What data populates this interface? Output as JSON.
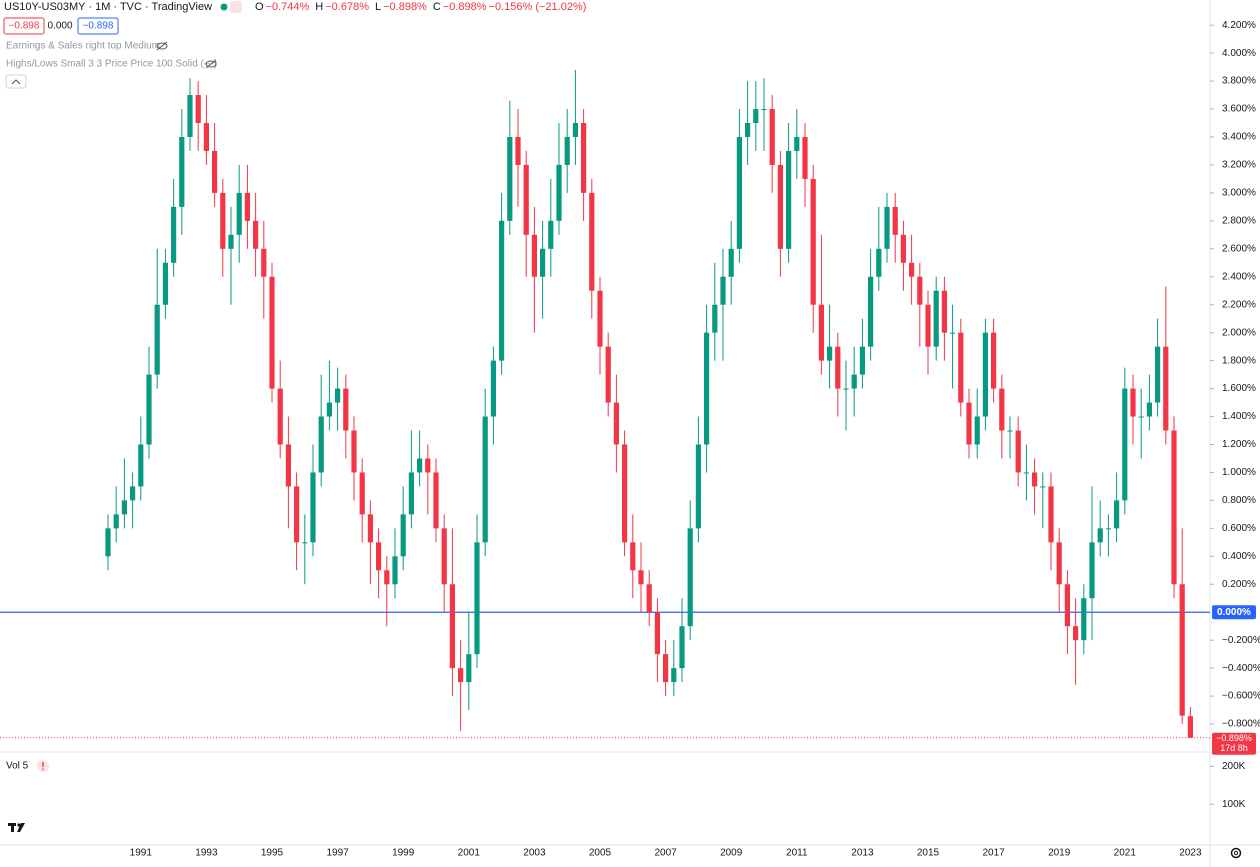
{
  "header": {
    "symbol": "US10Y-US03MY · 1M · TVC · TradingView",
    "ohlc": [
      {
        "label": "O",
        "value": "−0.744%"
      },
      {
        "label": "H",
        "value": "−0.678%"
      },
      {
        "label": "L",
        "value": "−0.898%"
      },
      {
        "label": "C",
        "value": "−0.898%"
      },
      {
        "label": "",
        "value": "−0.156% (−21.02%)"
      }
    ],
    "buttons": [
      "−0.898",
      "0.000",
      "−0.898"
    ],
    "indicators": [
      "Earnings & Sales right top Medium",
      "Highs/Lows Small 3 3 Price Price 100 Solid (—)"
    ]
  },
  "chart_data": {
    "type": "candlestick",
    "up_color": "#089981",
    "down_color": "#f23645",
    "categories": [
      null,
      null,
      null,
      null,
      "1991",
      null,
      null,
      null,
      null,
      null,
      null,
      null,
      "1993",
      null,
      null,
      null,
      null,
      null,
      null,
      null,
      "1995",
      null,
      null,
      null,
      null,
      null,
      null,
      null,
      "1997",
      null,
      null,
      null,
      null,
      null,
      null,
      null,
      "1999",
      null,
      null,
      null,
      null,
      null,
      null,
      null,
      "2001",
      null,
      null,
      null,
      null,
      null,
      null,
      null,
      "2003",
      null,
      null,
      null,
      null,
      null,
      null,
      null,
      "2005",
      null,
      null,
      null,
      null,
      null,
      null,
      null,
      "2007",
      null,
      null,
      null,
      null,
      null,
      null,
      null,
      "2009",
      null,
      null,
      null,
      null,
      null,
      null,
      null,
      "2011",
      null,
      null,
      null,
      null,
      null,
      null,
      null,
      "2013",
      null,
      null,
      null,
      null,
      null,
      null,
      null,
      "2015",
      null,
      null,
      null,
      null,
      null,
      null,
      null,
      "2017",
      null,
      null,
      null,
      null,
      null,
      null,
      null,
      "2019",
      null,
      null,
      null,
      null,
      null,
      null,
      null,
      "2021",
      null,
      null,
      null,
      null,
      null,
      null,
      null,
      "2023"
    ],
    "open": [
      0.4,
      0.6,
      0.7,
      0.8,
      0.9,
      1.2,
      1.7,
      2.2,
      2.5,
      2.9,
      3.4,
      3.7,
      3.5,
      3.3,
      3.0,
      2.6,
      2.7,
      3.0,
      2.8,
      2.6,
      2.4,
      1.6,
      1.2,
      0.9,
      0.5,
      0.5,
      1.0,
      1.4,
      1.5,
      1.6,
      1.3,
      1.0,
      0.7,
      0.5,
      0.3,
      0.2,
      0.4,
      0.7,
      1.0,
      1.1,
      1.0,
      0.6,
      0.2,
      -0.4,
      -0.5,
      -0.3,
      0.5,
      1.4,
      1.8,
      2.8,
      3.4,
      3.2,
      2.7,
      2.4,
      2.6,
      2.8,
      3.2,
      3.4,
      3.5,
      3.0,
      2.3,
      1.9,
      1.5,
      1.2,
      0.5,
      0.3,
      0.2,
      0.0,
      -0.3,
      -0.5,
      -0.4,
      -0.1,
      0.6,
      1.2,
      2.0,
      2.2,
      2.4,
      2.6,
      3.4,
      3.5,
      3.6,
      3.6,
      3.2,
      2.6,
      3.3,
      3.4,
      3.1,
      2.2,
      1.8,
      1.9,
      1.6,
      1.6,
      1.7,
      1.9,
      2.4,
      2.6,
      2.9,
      2.7,
      2.5,
      2.4,
      2.2,
      1.9,
      2.3,
      2.0,
      2.0,
      1.5,
      1.2,
      1.4,
      2.0,
      1.6,
      1.3,
      1.3,
      1.0,
      1.0,
      0.9,
      0.9,
      0.5,
      0.2,
      -0.1,
      -0.2,
      0.1,
      0.5,
      0.6,
      0.6,
      0.8,
      1.6,
      1.4,
      1.4,
      1.5,
      1.9,
      1.3,
      0.2,
      -0.744
    ],
    "high": [
      0.7,
      0.9,
      1.1,
      1.0,
      1.4,
      1.9,
      2.6,
      2.6,
      3.1,
      3.6,
      3.82,
      3.8,
      3.7,
      3.5,
      3.1,
      2.9,
      3.2,
      3.2,
      3.0,
      2.8,
      2.5,
      1.8,
      1.4,
      1.0,
      0.7,
      1.2,
      1.7,
      1.8,
      1.75,
      1.7,
      1.4,
      1.1,
      0.8,
      0.6,
      0.4,
      0.6,
      0.9,
      1.3,
      1.3,
      1.2,
      1.1,
      0.7,
      0.6,
      -0.2,
      0.0,
      0.7,
      1.6,
      1.9,
      3.0,
      3.66,
      3.6,
      3.3,
      2.9,
      2.8,
      3.1,
      3.5,
      3.6,
      3.88,
      3.6,
      3.1,
      2.4,
      2.0,
      1.7,
      1.3,
      0.7,
      0.5,
      0.3,
      0.1,
      -0.2,
      -0.2,
      0.1,
      0.8,
      1.4,
      2.2,
      2.5,
      2.6,
      2.8,
      3.6,
      3.8,
      3.8,
      3.82,
      3.7,
      3.3,
      3.5,
      3.6,
      3.5,
      3.2,
      2.7,
      2.2,
      2.0,
      1.8,
      1.9,
      2.1,
      2.6,
      2.9,
      3.0,
      3.0,
      2.8,
      2.7,
      2.5,
      2.3,
      2.4,
      2.4,
      2.2,
      2.1,
      1.6,
      1.6,
      2.1,
      2.1,
      1.7,
      1.4,
      1.4,
      1.2,
      1.1,
      1.0,
      1.0,
      0.6,
      0.3,
      0.1,
      0.2,
      0.9,
      0.8,
      0.7,
      1.0,
      1.75,
      1.7,
      1.6,
      1.7,
      2.1,
      2.33,
      1.4,
      0.6,
      -0.678
    ],
    "low": [
      0.3,
      0.5,
      0.6,
      0.6,
      0.8,
      1.1,
      1.6,
      2.1,
      2.4,
      2.7,
      3.3,
      3.3,
      3.2,
      2.9,
      2.4,
      2.2,
      2.5,
      2.6,
      2.4,
      2.1,
      1.5,
      1.1,
      0.6,
      0.3,
      0.2,
      0.4,
      0.9,
      1.3,
      1.3,
      1.1,
      0.8,
      0.5,
      0.2,
      0.1,
      -0.1,
      0.1,
      0.3,
      0.6,
      0.9,
      0.7,
      0.5,
      0.0,
      -0.6,
      -0.85,
      -0.7,
      -0.4,
      0.4,
      1.2,
      1.7,
      2.7,
      2.9,
      2.4,
      2.0,
      2.1,
      2.4,
      2.7,
      3.0,
      3.2,
      2.8,
      2.1,
      1.7,
      1.4,
      1.0,
      0.4,
      0.1,
      0.0,
      -0.1,
      -0.5,
      -0.6,
      -0.6,
      -0.5,
      -0.2,
      0.5,
      1.0,
      1.8,
      1.8,
      2.2,
      2.5,
      3.2,
      3.3,
      3.3,
      3.0,
      2.4,
      2.5,
      3.1,
      2.9,
      2.0,
      1.7,
      1.6,
      1.4,
      1.3,
      1.4,
      1.6,
      1.8,
      2.3,
      2.5,
      2.5,
      2.3,
      2.2,
      1.9,
      1.7,
      1.8,
      1.8,
      1.6,
      1.4,
      1.1,
      1.1,
      1.3,
      1.5,
      1.1,
      1.1,
      0.9,
      0.8,
      0.7,
      0.6,
      0.3,
      0.0,
      -0.3,
      -0.52,
      -0.3,
      -0.2,
      0.4,
      0.4,
      0.5,
      0.7,
      1.2,
      1.1,
      1.3,
      1.4,
      1.2,
      0.1,
      -0.8,
      -0.898
    ],
    "close": [
      0.6,
      0.7,
      0.8,
      0.9,
      1.2,
      1.7,
      2.2,
      2.5,
      2.9,
      3.4,
      3.7,
      3.5,
      3.3,
      3.0,
      2.6,
      2.7,
      3.0,
      2.8,
      2.6,
      2.4,
      1.6,
      1.2,
      0.9,
      0.5,
      0.5,
      1.0,
      1.4,
      1.5,
      1.6,
      1.3,
      1.0,
      0.7,
      0.5,
      0.3,
      0.2,
      0.4,
      0.7,
      1.0,
      1.1,
      1.0,
      0.6,
      0.2,
      -0.4,
      -0.5,
      -0.3,
      0.5,
      1.4,
      1.8,
      2.8,
      3.4,
      3.2,
      2.7,
      2.4,
      2.6,
      2.8,
      3.2,
      3.4,
      3.5,
      3.0,
      2.3,
      1.9,
      1.5,
      1.2,
      0.5,
      0.3,
      0.2,
      0.0,
      -0.3,
      -0.5,
      -0.4,
      -0.1,
      0.6,
      1.2,
      2.0,
      2.2,
      2.4,
      2.6,
      3.4,
      3.5,
      3.6,
      3.6,
      3.2,
      2.6,
      3.3,
      3.4,
      3.1,
      2.2,
      1.8,
      1.9,
      1.6,
      1.6,
      1.7,
      1.9,
      2.4,
      2.6,
      2.9,
      2.7,
      2.5,
      2.4,
      2.2,
      1.9,
      2.3,
      2.0,
      2.0,
      1.5,
      1.2,
      1.4,
      2.0,
      1.6,
      1.3,
      1.3,
      1.0,
      1.0,
      0.9,
      0.9,
      0.5,
      0.2,
      -0.1,
      -0.2,
      0.1,
      0.5,
      0.6,
      0.6,
      0.8,
      1.6,
      1.4,
      1.4,
      1.5,
      1.9,
      1.3,
      0.2,
      -0.74,
      -0.898
    ],
    "ylim": [
      -1.0,
      4.38
    ],
    "yticks": [
      {
        "value": 4.2,
        "label": "4.200%"
      },
      {
        "value": 4.0,
        "label": "4.000%"
      },
      {
        "value": 3.8,
        "label": "3.800%"
      },
      {
        "value": 3.6,
        "label": "3.600%"
      },
      {
        "value": 3.4,
        "label": "3.400%"
      },
      {
        "value": 3.2,
        "label": "3.200%"
      },
      {
        "value": 3.0,
        "label": "3.000%"
      },
      {
        "value": 2.8,
        "label": "2.800%"
      },
      {
        "value": 2.6,
        "label": "2.600%"
      },
      {
        "value": 2.4,
        "label": "2.400%"
      },
      {
        "value": 2.2,
        "label": "2.200%"
      },
      {
        "value": 2.0,
        "label": "2.000%"
      },
      {
        "value": 1.8,
        "label": "1.800%"
      },
      {
        "value": 1.6,
        "label": "1.600%"
      },
      {
        "value": 1.4,
        "label": "1.400%"
      },
      {
        "value": 1.2,
        "label": "1.200%"
      },
      {
        "value": 1.0,
        "label": "1.000%"
      },
      {
        "value": 0.8,
        "label": "0.800%"
      },
      {
        "value": 0.6,
        "label": "0.600%"
      },
      {
        "value": 0.4,
        "label": "0.400%"
      },
      {
        "value": 0.2,
        "label": "0.200%"
      },
      {
        "value": -0.2,
        "label": "−0.200%"
      },
      {
        "value": -0.4,
        "label": "−0.400%"
      },
      {
        "value": -0.6,
        "label": "−0.600%"
      },
      {
        "value": -0.8,
        "label": "−0.800%"
      }
    ],
    "grid": false,
    "hline": {
      "value": 0,
      "label": "0.000%",
      "color": "#2962ff"
    },
    "last_price": {
      "label": "−0.898%",
      "countdown": "17d 8h"
    },
    "volume": {
      "label": "Vol 5",
      "ylim": [
        0,
        230000
      ],
      "yticks": [
        {
          "value": 200000,
          "label": "200K"
        },
        {
          "value": 100000,
          "label": "100K"
        }
      ]
    }
  }
}
